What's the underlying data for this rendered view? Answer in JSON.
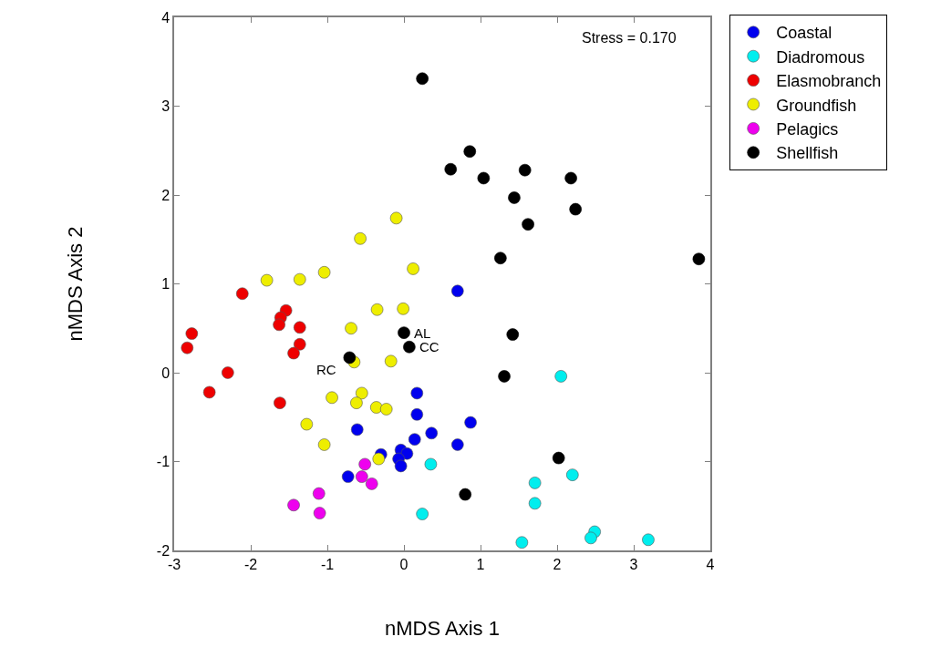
{
  "chart_data": {
    "type": "scatter",
    "xlabel": "nMDS Axis 1",
    "ylabel": "nMDS Axis 2",
    "xlim": [
      -3,
      4
    ],
    "xticks": [
      -3,
      -2,
      -1,
      0,
      1,
      2,
      3,
      4
    ],
    "ylim": [
      -2,
      4
    ],
    "yticks": [
      -2,
      -1,
      0,
      1,
      2,
      3,
      4
    ],
    "grid": false,
    "legend": "top right",
    "marker": "circle",
    "series": [
      {
        "name": "Coastal",
        "color": "#0000ee",
        "x": [
          0.7,
          0.17,
          0.17,
          0.36,
          0.87,
          0.7,
          0.14,
          -0.61,
          -0.04,
          0.04,
          -0.07,
          -0.04,
          -0.3,
          -0.73
        ],
        "values": [
          0.92,
          -0.23,
          -0.47,
          -0.68,
          -0.56,
          -0.81,
          -0.75,
          -0.64,
          -0.87,
          -0.91,
          -0.97,
          -1.05,
          -0.92,
          -1.17
        ]
      },
      {
        "name": "Diadromous",
        "color": "#00eeee",
        "x": [
          2.05,
          0.35,
          1.71,
          1.71,
          2.2,
          0.24,
          1.54,
          2.49,
          2.44,
          3.19
        ],
        "values": [
          -0.04,
          -1.03,
          -1.24,
          -1.47,
          -1.15,
          -1.59,
          -1.91,
          -1.79,
          -1.86,
          -1.88
        ]
      },
      {
        "name": "Elasmobranch",
        "color": "#ee0000",
        "x": [
          -2.11,
          -2.77,
          -2.83,
          -2.3,
          -2.54,
          -1.54,
          -1.61,
          -1.63,
          -1.36,
          -1.36,
          -1.44,
          -1.62
        ],
        "values": [
          0.89,
          0.44,
          0.28,
          0.0,
          -0.22,
          0.7,
          0.62,
          0.54,
          0.51,
          0.32,
          0.22,
          -0.34
        ]
      },
      {
        "name": "Groundfish",
        "color": "#eeee00",
        "x": [
          -1.79,
          -1.36,
          -1.04,
          -0.57,
          -0.1,
          0.12,
          -0.35,
          -0.01,
          -0.69,
          -0.65,
          -0.17,
          -0.94,
          -0.55,
          -0.62,
          -0.36,
          -0.23,
          -1.27,
          -1.04,
          -0.33
        ],
        "values": [
          1.04,
          1.05,
          1.13,
          1.51,
          1.74,
          1.17,
          0.71,
          0.72,
          0.5,
          0.12,
          0.13,
          -0.28,
          -0.23,
          -0.34,
          -0.39,
          -0.41,
          -0.58,
          -0.81,
          -0.97
        ]
      },
      {
        "name": "Pelagics",
        "color": "#ee00ee",
        "x": [
          -0.51,
          -0.55,
          -0.42,
          -1.11,
          -1.44,
          -1.1
        ],
        "values": [
          -1.03,
          -1.17,
          -1.25,
          -1.36,
          -1.49,
          -1.58
        ]
      },
      {
        "name": "Shellfish",
        "color": "#000000",
        "x": [
          0.24,
          0.86,
          0.61,
          1.04,
          1.58,
          1.44,
          2.18,
          2.24,
          1.62,
          1.26,
          3.85,
          1.42,
          1.31,
          2.02,
          0.8,
          0.0,
          0.07,
          -0.71
        ],
        "values": [
          3.31,
          2.49,
          2.29,
          2.19,
          2.28,
          1.97,
          2.19,
          1.84,
          1.67,
          1.29,
          1.28,
          0.43,
          -0.04,
          -0.96,
          -1.37,
          0.45,
          0.29,
          0.17
        ]
      }
    ],
    "annotations": [
      "Stress = 0.170",
      {
        "text": "AL",
        "x": 0.0,
        "y": 0.45
      },
      {
        "text": "CC",
        "x": 0.07,
        "y": 0.29
      },
      {
        "text": "RC",
        "x": -0.71,
        "y": 0.17
      }
    ]
  }
}
